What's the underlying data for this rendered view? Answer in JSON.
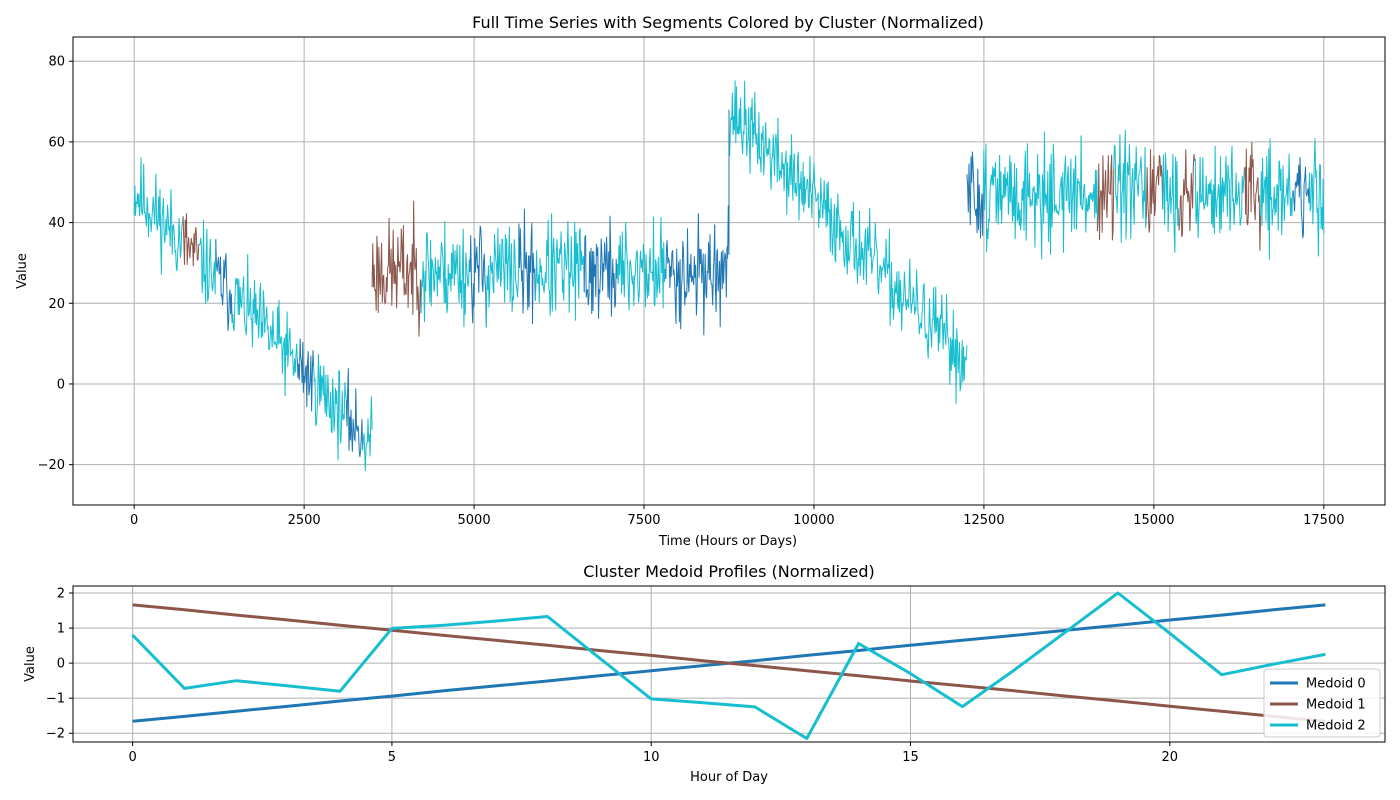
{
  "chart_data": [
    {
      "type": "line",
      "title": "Full Time Series with Segments Colored by Cluster (Normalized)",
      "xlabel": "Time (Hours or Days)",
      "ylabel": "Value",
      "xlim": [
        -900,
        18400
      ],
      "ylim": [
        -30,
        86
      ],
      "xticks": [
        0,
        2500,
        5000,
        7500,
        10000,
        12500,
        15000,
        17500
      ],
      "xtick_labels": [
        "0",
        "2500",
        "5000",
        "7500",
        "10000",
        "12500",
        "15000",
        "17500"
      ],
      "yticks": [
        -20,
        0,
        20,
        40,
        60,
        80
      ],
      "ytick_labels": [
        "−20",
        "0",
        "20",
        "40",
        "60",
        "80"
      ],
      "grid": true,
      "cluster_colors": [
        "#1f77b4",
        "#8c564b",
        "#17becf"
      ],
      "regimes": [
        {
          "x_start": 0,
          "x_end": 3500,
          "mean_start": 48,
          "mean_end": -15,
          "amplitude": 8,
          "seed": 11
        },
        {
          "x_start": 3500,
          "x_end": 8750,
          "mean_start": 28,
          "mean_end": 28,
          "amplitude": 10,
          "seed": 23
        },
        {
          "x_start": 8750,
          "x_end": 12250,
          "mean_start": 68,
          "mean_end": 5,
          "amplitude": 8,
          "seed": 37
        },
        {
          "x_start": 12250,
          "x_end": 17500,
          "mean_start": 47,
          "mean_end": 47,
          "amplitude": 10,
          "seed": 51
        }
      ]
    },
    {
      "type": "line",
      "title": "Cluster Medoid Profiles (Normalized)",
      "xlabel": "Hour of Day",
      "ylabel": "Value",
      "xlim": [
        -1.15,
        24.15
      ],
      "ylim": [
        -2.25,
        2.2
      ],
      "xticks": [
        0,
        5,
        10,
        15,
        20
      ],
      "xtick_labels": [
        "0",
        "5",
        "10",
        "15",
        "20"
      ],
      "yticks": [
        -2,
        -1,
        0,
        1,
        2
      ],
      "ytick_labels": [
        "−2",
        "−1",
        "0",
        "1",
        "2"
      ],
      "grid": true,
      "legend_position": "lower-right",
      "x": [
        0,
        1,
        2,
        3,
        4,
        5,
        6,
        7,
        8,
        9,
        10,
        11,
        12,
        13,
        14,
        15,
        16,
        17,
        18,
        19,
        20,
        21,
        22,
        23
      ],
      "series": [
        {
          "name": "Medoid 0",
          "color": "#1f77b4",
          "values": [
            -1.66,
            -1.52,
            -1.37,
            -1.23,
            -1.08,
            -0.94,
            -0.79,
            -0.65,
            -0.51,
            -0.36,
            -0.22,
            -0.07,
            0.07,
            0.22,
            0.36,
            0.51,
            0.65,
            0.79,
            0.94,
            1.08,
            1.23,
            1.37,
            1.52,
            1.66
          ]
        },
        {
          "name": "Medoid 1",
          "color": "#8c564b",
          "values": [
            1.66,
            1.52,
            1.37,
            1.23,
            1.08,
            0.94,
            0.79,
            0.65,
            0.51,
            0.36,
            0.22,
            0.07,
            -0.07,
            -0.22,
            -0.36,
            -0.51,
            -0.65,
            -0.79,
            -0.94,
            -1.08,
            -1.23,
            -1.37,
            -1.52,
            -1.66
          ]
        },
        {
          "name": "Medoid 2",
          "color": "#17becf",
          "values": [
            0.8,
            -0.72,
            -0.5,
            -0.65,
            -0.8,
            0.99,
            1.08,
            1.2,
            1.33,
            0.15,
            -1.02,
            -1.13,
            -1.25,
            -2.15,
            0.56,
            -0.3,
            -1.24,
            -0.2,
            0.9,
            2.0,
            0.85,
            -0.33,
            -0.03,
            0.25
          ]
        }
      ]
    }
  ]
}
